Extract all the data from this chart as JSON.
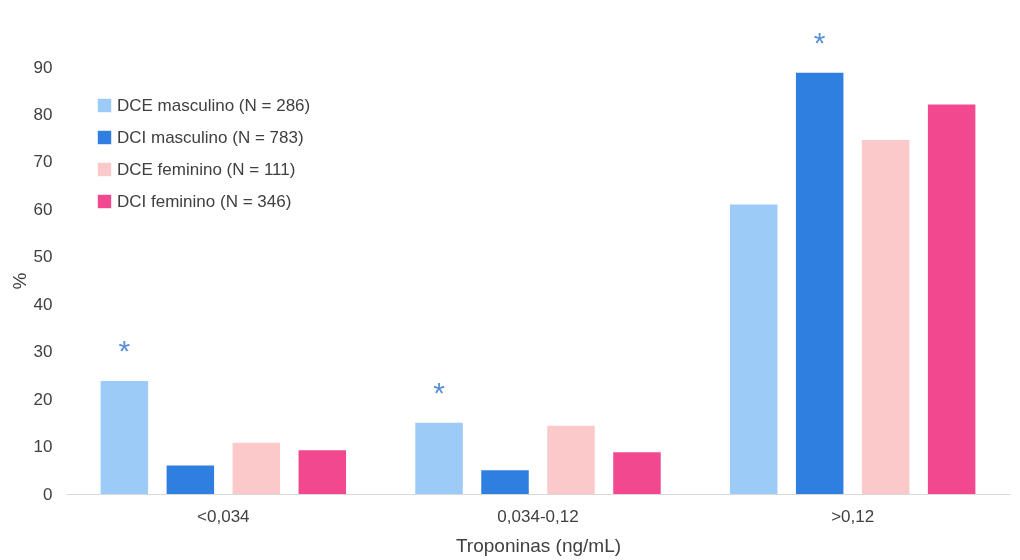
{
  "chart_data": {
    "type": "bar",
    "xlabel": "Troponinas (ng/mL)",
    "ylabel": "%",
    "categories": [
      "<0,034",
      "0,034-0,12",
      ">0,12"
    ],
    "series": [
      {
        "name": "DCE masculino (N = 286)",
        "color": "#9dcbf8",
        "values": [
          23.8,
          15.0,
          61.0
        ]
      },
      {
        "name": "DCI masculino (N = 783)",
        "color": "#2f7fe0",
        "values": [
          6.0,
          5.0,
          88.8
        ]
      },
      {
        "name": "DCE feminino (N = 111)",
        "color": "#fbc9c9",
        "values": [
          10.8,
          14.4,
          74.6
        ]
      },
      {
        "name": "DCI feminino (N = 346)",
        "color": "#f2488f",
        "values": [
          9.2,
          8.8,
          82.1
        ]
      }
    ],
    "ylim": [
      0,
      90
    ],
    "yticks": [
      0,
      10,
      20,
      30,
      40,
      50,
      60,
      70,
      80,
      90
    ],
    "annotations": [
      "*",
      "*",
      "*"
    ],
    "grid": false,
    "legend": "top left"
  }
}
